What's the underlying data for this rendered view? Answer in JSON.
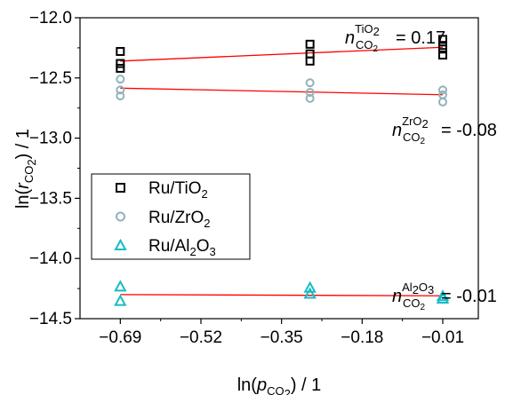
{
  "chart_data": {
    "type": "scatter",
    "xlabel": {
      "prefix": "ln(",
      "var": "p",
      "sub_main": "CO",
      "sub_sub": "2",
      "suffix": ") / 1"
    },
    "ylabel": {
      "prefix": "ln(",
      "var": "r",
      "sub_main": "CO",
      "sub_sub": "2",
      "suffix": ") / 1"
    },
    "xlim": [
      -0.775,
      0.065
    ],
    "ylim": [
      -14.5,
      -12.0
    ],
    "xticks": [
      -0.69,
      -0.52,
      -0.35,
      -0.18,
      -0.01
    ],
    "xtick_labels": [
      "-0.69",
      "-0.52",
      "-0.35",
      "-0.18",
      "-0.01"
    ],
    "yticks": [
      -12.0,
      -12.5,
      -13.0,
      -13.5,
      -14.0,
      -14.5
    ],
    "ytick_labels": [
      "-12.0",
      "-12.5",
      "-13.0",
      "-13.5",
      "-14.0",
      "-14.5"
    ],
    "series": [
      {
        "name": "Ru/TiO2",
        "name_parts": {
          "main": "Ru/TiO",
          "sub": "2"
        },
        "marker": "square",
        "color": "#000000",
        "x": [
          -0.69,
          -0.69,
          -0.69,
          -0.29,
          -0.29,
          -0.29,
          -0.01,
          -0.01,
          -0.01,
          -0.01
        ],
        "y": [
          -12.28,
          -12.38,
          -12.42,
          -12.22,
          -12.3,
          -12.36,
          -12.18,
          -12.23,
          -12.26,
          -12.31
        ],
        "fit": {
          "x": [
            -0.69,
            -0.01
          ],
          "y": [
            -12.36,
            -12.245
          ]
        },
        "annotation": {
          "n": "n",
          "sup": "TiO",
          "sup_sub": "2",
          "sub": "CO",
          "sub_sub": "2",
          "value": "= 0.17"
        }
      },
      {
        "name": "Ru/ZrO2",
        "name_parts": {
          "main": "Ru/ZrO",
          "sub": "2"
        },
        "marker": "circle",
        "color": "#8fb3bb",
        "x": [
          -0.69,
          -0.69,
          -0.69,
          -0.29,
          -0.29,
          -0.29,
          -0.01,
          -0.01,
          -0.01
        ],
        "y": [
          -12.51,
          -12.6,
          -12.65,
          -12.54,
          -12.62,
          -12.67,
          -12.6,
          -12.64,
          -12.7
        ],
        "fit": {
          "x": [
            -0.69,
            -0.01
          ],
          "y": [
            -12.585,
            -12.64
          ]
        },
        "annotation": {
          "n": "n",
          "sup": "ZrO",
          "sup_sub": "2",
          "sub": "CO",
          "sub_sub": "2",
          "value": "= -0.08"
        }
      },
      {
        "name": "Ru/Al2O3",
        "name_parts": {
          "main": "Ru/Al",
          "sub": "2",
          "main2": "O",
          "sub2": "3"
        },
        "marker": "triangle",
        "color": "#17bcc4",
        "x": [
          -0.69,
          -0.69,
          -0.29,
          -0.29,
          -0.01,
          -0.01
        ],
        "y": [
          -14.23,
          -14.35,
          -14.24,
          -14.29,
          -14.31,
          -14.33
        ],
        "fit": {
          "x": [
            -0.69,
            -0.01
          ],
          "y": [
            -14.3,
            -14.31
          ]
        },
        "annotation": {
          "n": "n",
          "sup": "Al",
          "sup_sub": "2",
          "sup2": "O",
          "sup2_sub": "3",
          "sub": "CO",
          "sub_sub": "2",
          "value": "= -0.01"
        }
      }
    ],
    "fit_color": "#ff0000",
    "legend_position": "left-middle",
    "grid": false
  }
}
